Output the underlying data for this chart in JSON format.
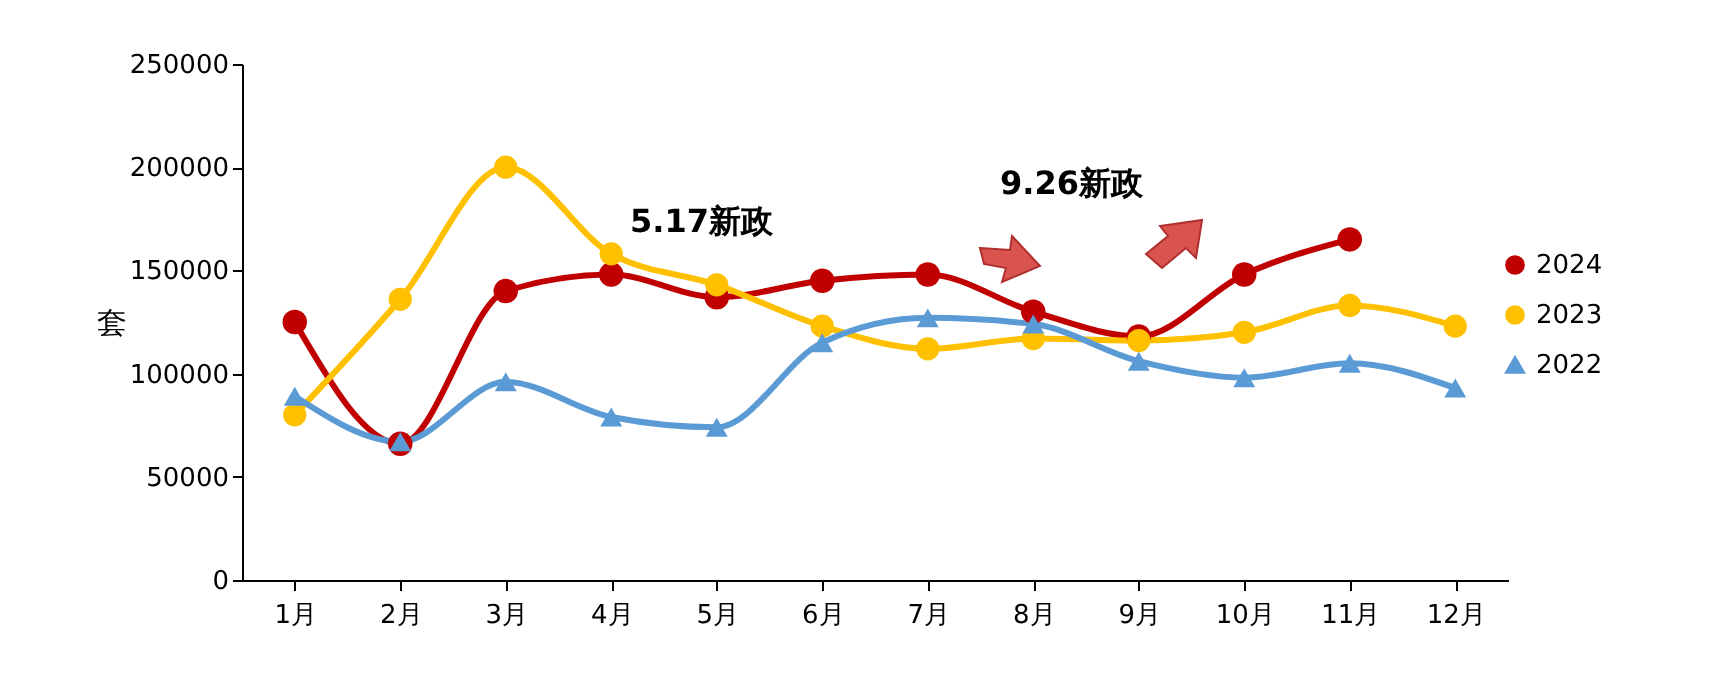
{
  "chart_data": {
    "type": "line",
    "ylabel": "套",
    "categories": [
      "1月",
      "2月",
      "3月",
      "4月",
      "5月",
      "6月",
      "7月",
      "8月",
      "9月",
      "10月",
      "11月",
      "12月"
    ],
    "series": [
      {
        "name": "2024",
        "color": "#c00000",
        "marker": "circle",
        "values": [
          125000,
          66000,
          140000,
          148000,
          137000,
          145000,
          148000,
          130000,
          118000,
          148000,
          165000,
          null
        ]
      },
      {
        "name": "2023",
        "color": "#ffc000",
        "marker": "circle",
        "values": [
          80000,
          136000,
          200000,
          158000,
          143000,
          123000,
          112000,
          117000,
          116000,
          120000,
          133000,
          123000
        ]
      },
      {
        "name": "2022",
        "color": "#5b9bd5",
        "marker": "triangle",
        "values": [
          89000,
          67000,
          96000,
          79000,
          74000,
          115000,
          127000,
          124000,
          106000,
          98000,
          105000,
          93000
        ]
      }
    ],
    "ylim": [
      0,
      250000
    ],
    "yticks": [
      0,
      50000,
      100000,
      150000,
      200000,
      250000
    ],
    "grid": false,
    "legend": "right",
    "line_style": "solid",
    "annotations": [
      "5.17新政",
      "9.26新政"
    ]
  }
}
